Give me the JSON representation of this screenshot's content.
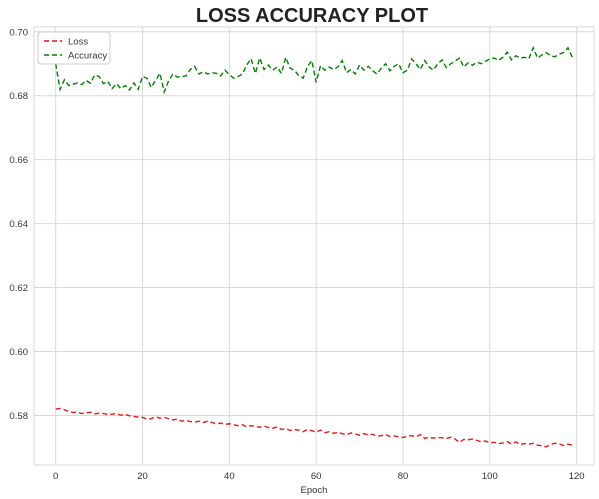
{
  "chart_data": {
    "type": "line",
    "title": "LOSS ACCURACY PLOT",
    "xlabel": "Epoch",
    "ylabel": "",
    "xlim": [
      -5,
      124
    ],
    "ylim": [
      0.5645,
      0.7015
    ],
    "x_ticks": [
      0,
      20,
      40,
      60,
      80,
      100,
      120
    ],
    "x_tick_labels": [
      "0",
      "20",
      "40",
      "60",
      "80",
      "100",
      "120"
    ],
    "y_ticks": [
      0.58,
      0.6,
      0.62,
      0.64,
      0.66,
      0.68,
      0.7
    ],
    "y_tick_labels": [
      "0.58",
      "0.60",
      "0.62",
      "0.64",
      "0.66",
      "0.68",
      "0.70"
    ],
    "grid": true,
    "legend_position": "top-left",
    "series": [
      {
        "name": "Loss",
        "color": "#e41a1c",
        "line_style": "dashed",
        "values": [
          0.582,
          0.5822,
          0.5818,
          0.5812,
          0.5809,
          0.581,
          0.5806,
          0.5808,
          0.581,
          0.5805,
          0.5807,
          0.5806,
          0.5803,
          0.5804,
          0.5806,
          0.5801,
          0.5803,
          0.5799,
          0.5797,
          0.5795,
          0.5794,
          0.5788,
          0.579,
          0.5796,
          0.5791,
          0.5794,
          0.579,
          0.5786,
          0.5789,
          0.5782,
          0.5784,
          0.5781,
          0.5779,
          0.5782,
          0.5778,
          0.5782,
          0.5778,
          0.5774,
          0.5776,
          0.5772,
          0.5774,
          0.5771,
          0.5768,
          0.5771,
          0.5764,
          0.5768,
          0.5766,
          0.5763,
          0.5767,
          0.5762,
          0.576,
          0.5764,
          0.5756,
          0.5759,
          0.5753,
          0.5756,
          0.5754,
          0.5749,
          0.5756,
          0.5752,
          0.5748,
          0.5754,
          0.5746,
          0.5749,
          0.5744,
          0.5747,
          0.5743,
          0.574,
          0.5745,
          0.5742,
          0.5738,
          0.5743,
          0.5739,
          0.5741,
          0.5735,
          0.5737,
          0.574,
          0.5734,
          0.5736,
          0.5733,
          0.5731,
          0.5735,
          0.5737,
          0.5733,
          0.574,
          0.5728,
          0.5732,
          0.5729,
          0.5731,
          0.573,
          0.5728,
          0.5732,
          0.5726,
          0.5716,
          0.5725,
          0.5724,
          0.5726,
          0.5722,
          0.5718,
          0.572,
          0.5714,
          0.5716,
          0.5712,
          0.5714,
          0.5718,
          0.5711,
          0.5717,
          0.5709,
          0.5712,
          0.571,
          0.5713,
          0.5707,
          0.5705,
          0.5702,
          0.5709,
          0.5713,
          0.5711,
          0.5706,
          0.571,
          0.5707
        ]
      },
      {
        "name": "Accuracy",
        "color": "#008000",
        "line_style": "dashed",
        "values": [
          0.69,
          0.682,
          0.685,
          0.6832,
          0.6836,
          0.684,
          0.6835,
          0.6848,
          0.6839,
          0.6865,
          0.686,
          0.6838,
          0.6845,
          0.6822,
          0.6838,
          0.6822,
          0.6832,
          0.6818,
          0.684,
          0.682,
          0.686,
          0.6855,
          0.6826,
          0.6848,
          0.687,
          0.6812,
          0.6846,
          0.6868,
          0.6858,
          0.686,
          0.6862,
          0.6882,
          0.6892,
          0.6868,
          0.6875,
          0.6868,
          0.6872,
          0.687,
          0.6862,
          0.688,
          0.6866,
          0.6855,
          0.686,
          0.6868,
          0.6896,
          0.6916,
          0.687,
          0.6918,
          0.6882,
          0.6896,
          0.688,
          0.689,
          0.687,
          0.692,
          0.6886,
          0.688,
          0.6862,
          0.6855,
          0.6891,
          0.691,
          0.6842,
          0.6894,
          0.688,
          0.689,
          0.6882,
          0.689,
          0.691,
          0.6872,
          0.6882,
          0.6868,
          0.6896,
          0.688,
          0.6892,
          0.6878,
          0.6868,
          0.6886,
          0.69,
          0.6878,
          0.6892,
          0.69,
          0.6872,
          0.688,
          0.6915,
          0.69,
          0.6882,
          0.691,
          0.689,
          0.688,
          0.69,
          0.6912,
          0.6888,
          0.69,
          0.6908,
          0.6918,
          0.689,
          0.6903,
          0.6895,
          0.6905,
          0.69,
          0.6908,
          0.6915,
          0.6918,
          0.691,
          0.692,
          0.6936,
          0.6912,
          0.6925,
          0.6918,
          0.692,
          0.6916,
          0.695,
          0.6918,
          0.6928,
          0.6935,
          0.6925,
          0.6922,
          0.693,
          0.6935,
          0.695,
          0.692
        ]
      }
    ]
  }
}
